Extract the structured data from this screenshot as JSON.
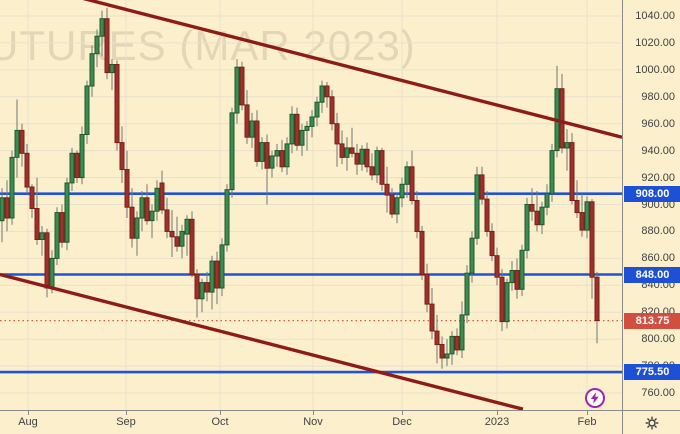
{
  "watermark": "UTURES (MAR 2023)",
  "colors": {
    "background": "#fcefcc",
    "grid": "#e7e0cd",
    "axis_text": "#424242",
    "axis_border": "#8a8a8a",
    "up_fill": "#3e8b52",
    "up_stroke": "#1d5a2c",
    "down_fill": "#9d322c",
    "down_stroke": "#7a1f19",
    "wick": "#757575",
    "trendline": "#8c1c15",
    "blue_line": "#2153d8",
    "blue_label_bg": "#1d50d4",
    "last_price_label_bg": "#d14f3f",
    "last_price_line": "#cf5a41",
    "watermark_color": "rgba(70,62,48,0.14)",
    "marker_purple": "#9c27b0",
    "marker_bg": "#fffdf6",
    "gear": "#3f3f3f"
  },
  "icons": {
    "corner": "gear-icon",
    "axis_marker": "lightning-circle-icon"
  },
  "price_axis": {
    "ticks": [
      {
        "label": "1040.00",
        "price": 1040
      },
      {
        "label": "1020.00",
        "price": 1020
      },
      {
        "label": "1000.00",
        "price": 1000
      },
      {
        "label": "980.00",
        "price": 980
      },
      {
        "label": "960.00",
        "price": 960
      },
      {
        "label": "940.00",
        "price": 940
      },
      {
        "label": "920.00",
        "price": 920
      },
      {
        "label": "900.00",
        "price": 900
      },
      {
        "label": "880.00",
        "price": 880
      },
      {
        "label": "860.00",
        "price": 860
      },
      {
        "label": "840.00",
        "price": 840
      },
      {
        "label": "820.00",
        "price": 820
      },
      {
        "label": "800.00",
        "price": 800
      },
      {
        "label": "780.00",
        "price": 780
      },
      {
        "label": "760.00",
        "price": 760
      }
    ]
  },
  "time_axis": {
    "months": [
      {
        "label": "Aug",
        "x": 28
      },
      {
        "label": "Sep",
        "x": 126
      },
      {
        "label": "Oct",
        "x": 220
      },
      {
        "label": "Nov",
        "x": 313
      },
      {
        "label": "Dec",
        "x": 402
      },
      {
        "label": "2023",
        "x": 497
      },
      {
        "label": "Feb",
        "x": 587
      }
    ]
  },
  "price_lines": [
    {
      "label": "908.00",
      "price": 908
    },
    {
      "label": "848.00",
      "price": 848
    },
    {
      "label": "775.50",
      "price": 775.5
    }
  ],
  "last_price": {
    "label": "813.75",
    "price": 813.75
  },
  "chart_data": {
    "type": "candlestick",
    "title_watermark": "UTURES (MAR 2023)",
    "x_start": 2,
    "x_step": 5,
    "y_top": 16,
    "y_bottom": 393,
    "p_top": 1040,
    "p_bottom": 760,
    "p_axis_min": 760,
    "p_axis_max": 1040,
    "p_step": 20,
    "ylim": [
      748,
      1056
    ],
    "horizontal_levels": [
      908,
      848,
      775.5
    ],
    "last_price": 813.75,
    "trendlines": [
      {
        "x1": 68,
        "price1": 1056,
        "x2": 622,
        "price2": 950
      },
      {
        "x1": 0,
        "price1": 848,
        "x2": 523,
        "price2": 748
      }
    ],
    "candles": [
      [
        888,
        912,
        872,
        905
      ],
      [
        905,
        918,
        880,
        890
      ],
      [
        890,
        940,
        885,
        935
      ],
      [
        935,
        978,
        920,
        955
      ],
      [
        955,
        960,
        928,
        938
      ],
      [
        938,
        945,
        908,
        913
      ],
      [
        913,
        915,
        890,
        897
      ],
      [
        897,
        920,
        870,
        874
      ],
      [
        874,
        884,
        862,
        879
      ],
      [
        879,
        882,
        831,
        838
      ],
      [
        838,
        866,
        834,
        860
      ],
      [
        860,
        898,
        855,
        894
      ],
      [
        894,
        900,
        868,
        872
      ],
      [
        872,
        920,
        866,
        916
      ],
      [
        916,
        942,
        910,
        938
      ],
      [
        938,
        940,
        916,
        920
      ],
      [
        920,
        958,
        915,
        952
      ],
      [
        952,
        992,
        945,
        988
      ],
      [
        988,
        1018,
        980,
        1012
      ],
      [
        1012,
        1030,
        1002,
        1025
      ],
      [
        1025,
        1044,
        1010,
        1038
      ],
      [
        1038,
        1046,
        993,
        998
      ],
      [
        998,
        1008,
        985,
        1004
      ],
      [
        1004,
        1007,
        940,
        946
      ],
      [
        946,
        958,
        916,
        926
      ],
      [
        926,
        940,
        890,
        898
      ],
      [
        898,
        912,
        868,
        875
      ],
      [
        875,
        895,
        862,
        890
      ],
      [
        890,
        910,
        880,
        905
      ],
      [
        905,
        915,
        885,
        888
      ],
      [
        888,
        900,
        875,
        895
      ],
      [
        895,
        918,
        888,
        912
      ],
      [
        916,
        925,
        893,
        896
      ],
      [
        896,
        905,
        875,
        880
      ],
      [
        880,
        896,
        861,
        876
      ],
      [
        876,
        891,
        865,
        869
      ],
      [
        869,
        885,
        860,
        880
      ],
      [
        878,
        892,
        862,
        889
      ],
      [
        889,
        895,
        846,
        848
      ],
      [
        848,
        852,
        816,
        830
      ],
      [
        830,
        845,
        820,
        842
      ],
      [
        842,
        850,
        828,
        835
      ],
      [
        835,
        862,
        822,
        858
      ],
      [
        858,
        865,
        826,
        838
      ],
      [
        838,
        875,
        832,
        870
      ],
      [
        870,
        915,
        865,
        911
      ],
      [
        911,
        972,
        905,
        968
      ],
      [
        968,
        1008,
        960,
        1002
      ],
      [
        1002,
        1006,
        970,
        974
      ],
      [
        974,
        985,
        945,
        950
      ],
      [
        950,
        968,
        942,
        962
      ],
      [
        962,
        970,
        928,
        932
      ],
      [
        932,
        950,
        926,
        946
      ],
      [
        946,
        952,
        900,
        927
      ],
      [
        927,
        940,
        920,
        936
      ],
      [
        936,
        945,
        928,
        940
      ],
      [
        940,
        948,
        924,
        928
      ],
      [
        928,
        950,
        922,
        945
      ],
      [
        945,
        973,
        938,
        967
      ],
      [
        967,
        972,
        940,
        944
      ],
      [
        944,
        960,
        936,
        955
      ],
      [
        955,
        962,
        940,
        958
      ],
      [
        958,
        970,
        950,
        965
      ],
      [
        965,
        980,
        958,
        976
      ],
      [
        976,
        992,
        968,
        988
      ],
      [
        988,
        991,
        972,
        980
      ],
      [
        980,
        985,
        955,
        960
      ],
      [
        960,
        968,
        928,
        945
      ],
      [
        945,
        955,
        930,
        935
      ],
      [
        935,
        950,
        925,
        942
      ],
      [
        942,
        957,
        935,
        938
      ],
      [
        938,
        945,
        922,
        930
      ],
      [
        930,
        944,
        925,
        941
      ],
      [
        941,
        946,
        924,
        928
      ],
      [
        928,
        938,
        918,
        922
      ],
      [
        922,
        943,
        916,
        940
      ],
      [
        940,
        942,
        910,
        915
      ],
      [
        915,
        928,
        894,
        907
      ],
      [
        907,
        912,
        890,
        893
      ],
      [
        893,
        908,
        886,
        905
      ],
      [
        905,
        920,
        898,
        915
      ],
      [
        915,
        932,
        905,
        928
      ],
      [
        928,
        940,
        900,
        903
      ],
      [
        903,
        910,
        875,
        880
      ],
      [
        880,
        884,
        844,
        848
      ],
      [
        848,
        856,
        820,
        826
      ],
      [
        826,
        838,
        800,
        806
      ],
      [
        806,
        818,
        782,
        796
      ],
      [
        796,
        802,
        778,
        786
      ],
      [
        786,
        800,
        780,
        789
      ],
      [
        789,
        806,
        781,
        802
      ],
      [
        802,
        808,
        788,
        792
      ],
      [
        792,
        828,
        786,
        818
      ],
      [
        818,
        855,
        812,
        849
      ],
      [
        849,
        880,
        842,
        875
      ],
      [
        875,
        928,
        870,
        922
      ],
      [
        922,
        928,
        900,
        904
      ],
      [
        904,
        910,
        876,
        880
      ],
      [
        880,
        886,
        858,
        862
      ],
      [
        862,
        868,
        840,
        846
      ],
      [
        846,
        852,
        806,
        813
      ],
      [
        813,
        845,
        808,
        842
      ],
      [
        842,
        858,
        836,
        851
      ],
      [
        851,
        860,
        830,
        837
      ],
      [
        837,
        870,
        832,
        866
      ],
      [
        866,
        905,
        860,
        900
      ],
      [
        900,
        912,
        888,
        895
      ],
      [
        895,
        910,
        880,
        885
      ],
      [
        885,
        902,
        878,
        898
      ],
      [
        898,
        915,
        892,
        908
      ],
      [
        908,
        945,
        902,
        940
      ],
      [
        940,
        1003,
        935,
        986
      ],
      [
        986,
        997,
        938,
        942
      ],
      [
        942,
        956,
        925,
        946
      ],
      [
        946,
        953,
        900,
        903
      ],
      [
        903,
        918,
        890,
        894
      ],
      [
        894,
        908,
        876,
        881
      ],
      [
        881,
        906,
        875,
        902
      ],
      [
        902,
        904,
        830,
        846
      ],
      [
        846,
        850,
        797,
        813.75
      ]
    ],
    "event_marker": {
      "x": 595,
      "y": 398
    }
  }
}
